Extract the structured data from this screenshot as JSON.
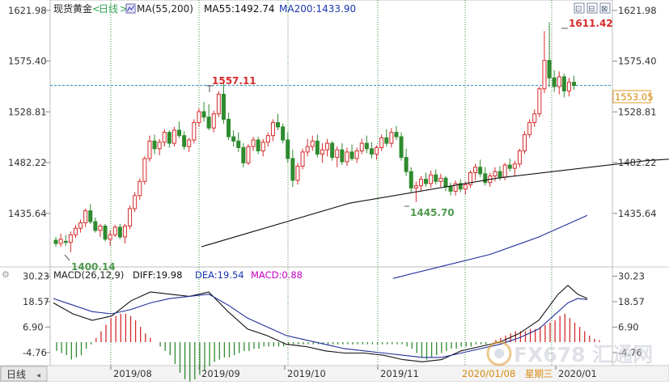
{
  "header": {
    "instrument": "现货黄金",
    "period_open": "<",
    "period": "日线",
    "period_close": ">",
    "indicator_label": "MA(55,200)",
    "ma55_text": "MA55:1492.74",
    "ma200_text": "MA200:1433.90",
    "window_buttons": [
      "⊡",
      "⊟",
      "⊠"
    ]
  },
  "price_axis": {
    "ticks": [
      "1621.98",
      "1575.40",
      "1528.81",
      "1482.22",
      "1435.64"
    ],
    "current_price_label": "1553.05"
  },
  "annotations": {
    "high_aug": "1557.11",
    "high_jan": "1611.42",
    "low_nov": "1445.70",
    "low_jul": "1400.14"
  },
  "macd": {
    "label_main": "MACD(26,12,9)",
    "diff_text": "DIFF:19.98",
    "dea_text": "DEA:19.54",
    "macd_text": "MACD:0.88",
    "ticks": [
      "30.23",
      "18.57",
      "6.90",
      "-4.76"
    ]
  },
  "time_axis": {
    "corner_tab": "日线",
    "labels": [
      "2019/08",
      "2019/09",
      "2019/10",
      "2019/11",
      "2020/01"
    ],
    "cursor_date": "2020/01/08",
    "cursor_weekday": "星期三"
  },
  "watermark": {
    "text": "FX678 汇通网"
  },
  "colors": {
    "up": "#d62b2b",
    "down": "#2e8b2e",
    "ma55": "#111111",
    "ma200": "#1f2f9a",
    "diff_line": "#111111",
    "dea_line": "#1f2f9a",
    "grid": "#3a8a3a",
    "hline": "#2a8ab5",
    "label_blue": "#1a35b0",
    "label_magenta": "#c400c4",
    "annot_red": "#d62b2b",
    "annot_green": "#4f9a4f"
  },
  "chart_data": [
    {
      "type": "candlestick",
      "y_scale": {
        "min": 1388,
        "max": 1630
      },
      "ohlc": [
        [
          1411,
          1414,
          1405,
          1408
        ],
        [
          1408,
          1417,
          1405,
          1412
        ],
        [
          1410,
          1416,
          1406,
          1409
        ],
        [
          1409,
          1419,
          1400,
          1416
        ],
        [
          1416,
          1425,
          1413,
          1422
        ],
        [
          1422,
          1430,
          1418,
          1427
        ],
        [
          1427,
          1440,
          1423,
          1438
        ],
        [
          1438,
          1444,
          1426,
          1428
        ],
        [
          1428,
          1432,
          1418,
          1420
        ],
        [
          1420,
          1426,
          1414,
          1424
        ],
        [
          1424,
          1426,
          1410,
          1412
        ],
        [
          1412,
          1420,
          1406,
          1416
        ],
        [
          1416,
          1425,
          1414,
          1423
        ],
        [
          1423,
          1426,
          1412,
          1414
        ],
        [
          1414,
          1426,
          1408,
          1424
        ],
        [
          1424,
          1443,
          1421,
          1440
        ],
        [
          1440,
          1455,
          1437,
          1452
        ],
        [
          1452,
          1468,
          1448,
          1465
        ],
        [
          1465,
          1488,
          1462,
          1486
        ],
        [
          1486,
          1507,
          1483,
          1502
        ],
        [
          1502,
          1508,
          1490,
          1495
        ],
        [
          1495,
          1504,
          1489,
          1501
        ],
        [
          1501,
          1513,
          1497,
          1510
        ],
        [
          1510,
          1512,
          1496,
          1500
        ],
        [
          1500,
          1515,
          1497,
          1512
        ],
        [
          1512,
          1520,
          1505,
          1507
        ],
        [
          1507,
          1511,
          1494,
          1497
        ],
        [
          1497,
          1505,
          1492,
          1503
        ],
        [
          1503,
          1522,
          1500,
          1519
        ],
        [
          1519,
          1532,
          1515,
          1529
        ],
        [
          1529,
          1538,
          1520,
          1524
        ],
        [
          1524,
          1536,
          1512,
          1514
        ],
        [
          1514,
          1530,
          1510,
          1527
        ],
        [
          1527,
          1548,
          1524,
          1545
        ],
        [
          1545,
          1557,
          1518,
          1522
        ],
        [
          1522,
          1528,
          1503,
          1506
        ],
        [
          1506,
          1512,
          1497,
          1502
        ],
        [
          1502,
          1510,
          1492,
          1496
        ],
        [
          1496,
          1500,
          1478,
          1482
        ],
        [
          1482,
          1499,
          1480,
          1497
        ],
        [
          1497,
          1506,
          1493,
          1503
        ],
        [
          1503,
          1506,
          1490,
          1493
        ],
        [
          1493,
          1504,
          1488,
          1501
        ],
        [
          1501,
          1510,
          1497,
          1507
        ],
        [
          1507,
          1522,
          1502,
          1519
        ],
        [
          1519,
          1527,
          1512,
          1515
        ],
        [
          1515,
          1518,
          1500,
          1503
        ],
        [
          1503,
          1510,
          1482,
          1486
        ],
        [
          1486,
          1494,
          1460,
          1466
        ],
        [
          1466,
          1482,
          1462,
          1479
        ],
        [
          1479,
          1495,
          1476,
          1492
        ],
        [
          1492,
          1504,
          1488,
          1497
        ],
        [
          1497,
          1507,
          1493,
          1502
        ],
        [
          1502,
          1508,
          1487,
          1490
        ],
        [
          1490,
          1500,
          1482,
          1494
        ],
        [
          1494,
          1504,
          1488,
          1500
        ],
        [
          1500,
          1502,
          1484,
          1487
        ],
        [
          1487,
          1497,
          1478,
          1494
        ],
        [
          1494,
          1500,
          1480,
          1483
        ],
        [
          1483,
          1496,
          1479,
          1492
        ],
        [
          1492,
          1499,
          1484,
          1486
        ],
        [
          1486,
          1496,
          1482,
          1493
        ],
        [
          1493,
          1504,
          1490,
          1500
        ],
        [
          1500,
          1507,
          1491,
          1495
        ],
        [
          1495,
          1501,
          1486,
          1490
        ],
        [
          1490,
          1498,
          1485,
          1496
        ],
        [
          1496,
          1508,
          1493,
          1505
        ],
        [
          1505,
          1513,
          1497,
          1500
        ],
        [
          1500,
          1514,
          1496,
          1510
        ],
        [
          1510,
          1516,
          1503,
          1506
        ],
        [
          1506,
          1510,
          1484,
          1487
        ],
        [
          1487,
          1495,
          1470,
          1474
        ],
        [
          1474,
          1478,
          1455,
          1459
        ],
        [
          1459,
          1465,
          1446,
          1461
        ],
        [
          1461,
          1470,
          1456,
          1467
        ],
        [
          1467,
          1473,
          1460,
          1463
        ],
        [
          1463,
          1475,
          1459,
          1471
        ],
        [
          1471,
          1476,
          1462,
          1465
        ],
        [
          1465,
          1472,
          1460,
          1468
        ],
        [
          1468,
          1470,
          1456,
          1460
        ],
        [
          1460,
          1464,
          1452,
          1456
        ],
        [
          1456,
          1466,
          1452,
          1463
        ],
        [
          1463,
          1467,
          1455,
          1458
        ],
        [
          1458,
          1465,
          1453,
          1462
        ],
        [
          1462,
          1475,
          1459,
          1473
        ],
        [
          1473,
          1481,
          1466,
          1478
        ],
        [
          1478,
          1485,
          1469,
          1472
        ],
        [
          1472,
          1478,
          1461,
          1464
        ],
        [
          1464,
          1473,
          1460,
          1470
        ],
        [
          1470,
          1478,
          1465,
          1474
        ],
        [
          1474,
          1479,
          1466,
          1469
        ],
        [
          1469,
          1482,
          1466,
          1480
        ],
        [
          1480,
          1486,
          1474,
          1477
        ],
        [
          1477,
          1484,
          1470,
          1481
        ],
        [
          1481,
          1495,
          1478,
          1493
        ],
        [
          1493,
          1511,
          1490,
          1508
        ],
        [
          1508,
          1522,
          1505,
          1519
        ],
        [
          1519,
          1531,
          1515,
          1527
        ],
        [
          1527,
          1552,
          1524,
          1550
        ],
        [
          1550,
          1603,
          1546,
          1576
        ],
        [
          1576,
          1611,
          1552,
          1560
        ],
        [
          1560,
          1567,
          1547,
          1552
        ],
        [
          1552,
          1566,
          1545,
          1561
        ],
        [
          1561,
          1564,
          1542,
          1548
        ],
        [
          1548,
          1560,
          1543,
          1556
        ],
        [
          1556,
          1562,
          1549,
          1553
        ]
      ],
      "ma55": [
        [
          0,
          1372
        ],
        [
          30,
          1405
        ],
        [
          60,
          1445
        ],
        [
          90,
          1468
        ],
        [
          120,
          1484
        ],
        [
          150,
          1493
        ],
        [
          180,
          1493
        ],
        [
          210,
          1489
        ],
        [
          240,
          1482
        ],
        [
          270,
          1475
        ],
        [
          300,
          1476
        ],
        [
          330,
          1480
        ],
        [
          345,
          1485
        ],
        [
          360,
          1492.74
        ]
      ],
      "ma200": [
        [
          120,
          1376
        ],
        [
          180,
          1387
        ],
        [
          240,
          1398
        ],
        [
          300,
          1414
        ],
        [
          360,
          1433.9
        ]
      ]
    },
    {
      "type": "macd",
      "y_scale": {
        "min": -10,
        "max": 33
      },
      "diff": [
        [
          0,
          18
        ],
        [
          4,
          13
        ],
        [
          8,
          10
        ],
        [
          12,
          12
        ],
        [
          16,
          19
        ],
        [
          20,
          23
        ],
        [
          24,
          22
        ],
        [
          28,
          21
        ],
        [
          32,
          23
        ],
        [
          36,
          14
        ],
        [
          40,
          6
        ],
        [
          44,
          3
        ],
        [
          48,
          -1
        ],
        [
          52,
          -2
        ],
        [
          56,
          -4
        ],
        [
          60,
          -5
        ],
        [
          64,
          -5
        ],
        [
          68,
          -6
        ],
        [
          72,
          -8
        ],
        [
          76,
          -9
        ],
        [
          80,
          -8
        ],
        [
          84,
          -4
        ],
        [
          88,
          -2
        ],
        [
          92,
          0
        ],
        [
          96,
          4
        ],
        [
          100,
          10
        ],
        [
          102,
          16
        ],
        [
          104,
          22
        ],
        [
          106,
          26
        ],
        [
          108,
          22
        ],
        [
          110,
          19.98
        ]
      ],
      "dea": [
        [
          0,
          20
        ],
        [
          4,
          17
        ],
        [
          8,
          14
        ],
        [
          12,
          13
        ],
        [
          16,
          15
        ],
        [
          20,
          18
        ],
        [
          24,
          20
        ],
        [
          28,
          21
        ],
        [
          32,
          22
        ],
        [
          36,
          17
        ],
        [
          40,
          11
        ],
        [
          44,
          7
        ],
        [
          48,
          3
        ],
        [
          52,
          1
        ],
        [
          56,
          -1
        ],
        [
          60,
          -3
        ],
        [
          64,
          -4
        ],
        [
          68,
          -5
        ],
        [
          72,
          -6
        ],
        [
          76,
          -7
        ],
        [
          80,
          -7
        ],
        [
          84,
          -5
        ],
        [
          88,
          -3
        ],
        [
          92,
          -1
        ],
        [
          96,
          2
        ],
        [
          100,
          6
        ],
        [
          102,
          10
        ],
        [
          104,
          14
        ],
        [
          106,
          18
        ],
        [
          108,
          20
        ],
        [
          110,
          19.54
        ]
      ],
      "hist": [
        -4,
        -5,
        -6,
        -8,
        -7,
        -6,
        -3,
        -1,
        2,
        5,
        8,
        11,
        12,
        13,
        13,
        12,
        10,
        7,
        4,
        2,
        0,
        -2,
        -4,
        -6,
        -10,
        -14,
        -17,
        -18,
        -17,
        -15,
        -13,
        -11,
        -9,
        -8,
        -7,
        -7,
        -6,
        -5,
        -4,
        -4,
        -3,
        -3,
        -2,
        -2,
        -2,
        -2,
        -2,
        -1,
        -1,
        -1,
        -1,
        -1,
        -1,
        -1,
        -1,
        -1,
        -1,
        -1,
        -1,
        -1,
        -1,
        -1,
        -1,
        -1,
        -1,
        -1,
        -1,
        -1,
        -1,
        -1,
        -1,
        -2,
        -3,
        -5,
        -7,
        -8,
        -7,
        -6,
        -5,
        -4,
        -3,
        -3,
        -2,
        -2,
        -2,
        -1,
        -1,
        -1,
        0,
        1,
        2,
        3,
        4,
        5,
        5,
        5,
        6,
        6,
        7,
        8,
        9,
        10,
        12,
        13,
        11,
        9,
        7,
        5,
        3,
        1.5,
        0.88
      ]
    }
  ]
}
